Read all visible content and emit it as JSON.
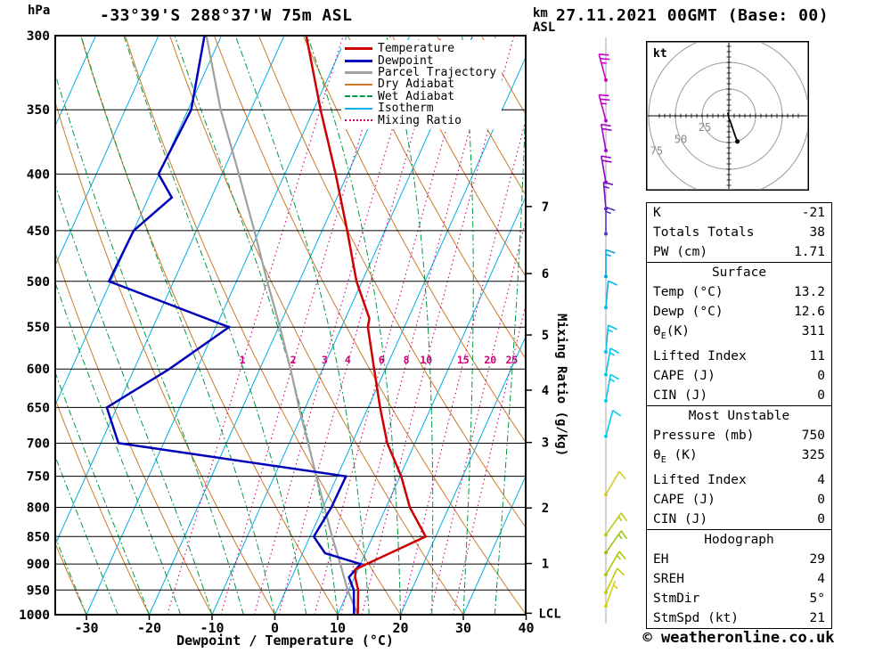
{
  "header": {
    "station": "-33°39'S 288°37'W 75m ASL",
    "datetime": "27.11.2021 00GMT (Base: 00)"
  },
  "footer": {
    "copyright": "© weatheronline.co.uk"
  },
  "axes": {
    "pressure_unit": "hPa",
    "km_unit": [
      "km",
      "ASL"
    ],
    "x_label": "Dewpoint / Temperature (°C)",
    "mixing_label": "Mixing Ratio (g/kg)",
    "lcl_label": "LCL",
    "lcl_p": 997,
    "pressure_ticks": [
      300,
      350,
      400,
      450,
      500,
      550,
      600,
      650,
      700,
      750,
      800,
      850,
      900,
      950,
      1000
    ],
    "temp_ticks": [
      -30,
      -20,
      -10,
      0,
      10,
      20,
      30,
      40
    ],
    "km_ticks": [
      {
        "km": 1,
        "p": 899
      },
      {
        "km": 2,
        "p": 801
      },
      {
        "km": 3,
        "p": 699
      },
      {
        "km": 4,
        "p": 627
      },
      {
        "km": 5,
        "p": 559
      },
      {
        "km": 6,
        "p": 492
      },
      {
        "km": 7,
        "p": 428
      }
    ]
  },
  "legend": [
    {
      "label": "Temperature",
      "color": "#cc0000",
      "dash": "solid",
      "width": 3
    },
    {
      "label": "Dewpoint",
      "color": "#0000bb",
      "dash": "solid",
      "width": 3
    },
    {
      "label": "Parcel Trajectory",
      "color": "#a0a0a0",
      "dash": "solid",
      "width": 3
    },
    {
      "label": "Dry Adiabat",
      "color": "#cc7a29",
      "dash": "solid",
      "width": 2
    },
    {
      "label": "Wet Adiabat",
      "color": "#009944",
      "dash": "dashed",
      "width": 2
    },
    {
      "label": "Isotherm",
      "color": "#00b0e8",
      "dash": "solid",
      "width": 2
    },
    {
      "label": "Mixing Ratio",
      "color": "#cc0077",
      "dash": "dotted",
      "width": 2
    }
  ],
  "colors": {
    "temperature": "#cc0000",
    "dewpoint": "#0000bb",
    "parcel": "#a0a0a0",
    "dry_adiabat": "#cc7a29",
    "wet_adiabat": "#009944",
    "isotherm": "#00b0e8",
    "mixing_ratio": "#cc0077",
    "grid": "#000000",
    "barb_axis": "#aaaaaa"
  },
  "chart_data": {
    "type": "line",
    "subtype": "skew-t-log-p",
    "pressure_range_hpa": [
      300,
      1000
    ],
    "temp_range_c": [
      -30,
      40
    ],
    "temperature_profile": [
      [
        1000,
        13.2
      ],
      [
        950,
        11.5
      ],
      [
        925,
        10.1
      ],
      [
        910,
        9.6
      ],
      [
        900,
        11.0
      ],
      [
        850,
        18.4
      ],
      [
        800,
        13.8
      ],
      [
        750,
        10.2
      ],
      [
        700,
        5.6
      ],
      [
        650,
        1.9
      ],
      [
        600,
        -1.8
      ],
      [
        550,
        -5.8
      ],
      [
        540,
        -6.2
      ],
      [
        500,
        -10.9
      ],
      [
        450,
        -16.0
      ],
      [
        400,
        -21.9
      ],
      [
        350,
        -28.9
      ],
      [
        300,
        -36.5
      ]
    ],
    "dewpoint_profile": [
      [
        1000,
        12.6
      ],
      [
        950,
        10.8
      ],
      [
        925,
        9.1
      ],
      [
        900,
        10.0
      ],
      [
        880,
        3.6
      ],
      [
        850,
        0.6
      ],
      [
        800,
        1.3
      ],
      [
        750,
        1.4
      ],
      [
        700,
        -37.2
      ],
      [
        650,
        -41.6
      ],
      [
        600,
        -34.4
      ],
      [
        550,
        -27.9
      ],
      [
        500,
        -50.3
      ],
      [
        450,
        -50.0
      ],
      [
        420,
        -46.3
      ],
      [
        400,
        -50.1
      ],
      [
        350,
        -49.5
      ],
      [
        300,
        -52.7
      ]
    ],
    "parcel_profile": [
      [
        1000,
        13.2
      ],
      [
        950,
        9.8
      ],
      [
        900,
        6.8
      ],
      [
        850,
        3.5
      ],
      [
        800,
        0.2
      ],
      [
        750,
        -3.3
      ],
      [
        700,
        -7.0
      ],
      [
        650,
        -11.0
      ],
      [
        600,
        -15.1
      ],
      [
        550,
        -19.8
      ],
      [
        500,
        -25.1
      ],
      [
        450,
        -30.8
      ],
      [
        400,
        -37.3
      ],
      [
        350,
        -44.8
      ],
      [
        300,
        -52.4
      ]
    ],
    "mixing_ratio_values": [
      1,
      2,
      3,
      4,
      6,
      8,
      10,
      15,
      20,
      25
    ],
    "wind_barbs": [
      {
        "p": 329,
        "dir": 345,
        "spd": 25,
        "color": "#cc00cc"
      },
      {
        "p": 358,
        "dir": 345,
        "spd": 25,
        "color": "#c000cc"
      },
      {
        "p": 381,
        "dir": 350,
        "spd": 20,
        "color": "#aa00d0"
      },
      {
        "p": 407,
        "dir": 350,
        "spd": 20,
        "color": "#9500cc"
      },
      {
        "p": 430,
        "dir": 355,
        "spd": 15,
        "color": "#7a10cc"
      },
      {
        "p": 453,
        "dir": 0,
        "spd": 15,
        "color": "#5530cc"
      },
      {
        "p": 495,
        "dir": 0,
        "spd": 15,
        "color": "#00a8e0"
      },
      {
        "p": 528,
        "dir": 5,
        "spd": 10,
        "color": "#00b4e6"
      },
      {
        "p": 579,
        "dir": 5,
        "spd": 15,
        "color": "#00c0ea"
      },
      {
        "p": 607,
        "dir": 10,
        "spd": 15,
        "color": "#00c4ec"
      },
      {
        "p": 641,
        "dir": 10,
        "spd": 15,
        "color": "#00c8ee"
      },
      {
        "p": 690,
        "dir": 15,
        "spd": 10,
        "color": "#00ccee"
      },
      {
        "p": 779,
        "dir": 30,
        "spd": 10,
        "color": "#d4cc2a"
      },
      {
        "p": 847,
        "dir": 35,
        "spd": 15,
        "color": "#b8cc10"
      },
      {
        "p": 879,
        "dir": 35,
        "spd": 15,
        "color": "#9cc414"
      },
      {
        "p": 920,
        "dir": 30,
        "spd": 15,
        "color": "#a8cc0a"
      },
      {
        "p": 955,
        "dir": 25,
        "spd": 10,
        "color": "#c4cc00"
      },
      {
        "p": 982,
        "dir": 20,
        "spd": 8,
        "color": "#d8d20a"
      }
    ],
    "hodograph": {
      "unit": "kt",
      "rings": [
        25,
        50,
        75
      ],
      "trace": [
        [
          -1,
          3
        ],
        [
          0,
          -2
        ],
        [
          2,
          -7
        ],
        [
          4,
          -13
        ],
        [
          6,
          -19
        ],
        [
          8,
          -24
        ]
      ],
      "marker": [
        8,
        -24
      ]
    }
  },
  "panel": {
    "sections": [
      {
        "rows": [
          [
            "K",
            "-21"
          ],
          [
            "Totals Totals",
            "38"
          ],
          [
            "PW (cm)",
            "1.71"
          ]
        ]
      },
      {
        "header": "Surface",
        "rows": [
          [
            "Temp (°C)",
            "13.2"
          ],
          [
            "Dewp (°C)",
            "12.6"
          ],
          [
            "θE(K)",
            "311"
          ],
          [
            "Lifted Index",
            "11"
          ],
          [
            "CAPE (J)",
            "0"
          ],
          [
            "CIN (J)",
            "0"
          ]
        ]
      },
      {
        "header": "Most Unstable",
        "rows": [
          [
            "Pressure (mb)",
            "750"
          ],
          [
            "θE (K)",
            "325"
          ],
          [
            "Lifted Index",
            "4"
          ],
          [
            "CAPE (J)",
            "0"
          ],
          [
            "CIN (J)",
            "0"
          ]
        ]
      },
      {
        "header": "Hodograph",
        "rows": [
          [
            "EH",
            "29"
          ],
          [
            "SREH",
            "4"
          ],
          [
            "StmDir",
            "5°"
          ],
          [
            "StmSpd (kt)",
            "21"
          ]
        ]
      }
    ]
  }
}
